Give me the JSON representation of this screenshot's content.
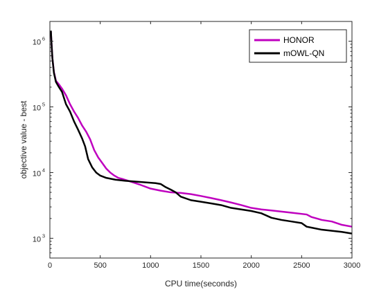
{
  "chart_data": {
    "type": "line",
    "title": "",
    "xlabel": "CPU time(seconds)",
    "ylabel": "objective value - best",
    "xlim": [
      0,
      3000
    ],
    "ylim": [
      500,
      2000000
    ],
    "yscale": "log",
    "x_ticks": [
      0,
      500,
      1000,
      1500,
      2000,
      2500,
      3000
    ],
    "x_tick_labels": [
      "0",
      "500",
      "1000",
      "1500",
      "2000",
      "2500",
      "3000"
    ],
    "y_ticks": [
      {
        "value": 1000,
        "base": "10",
        "exp": "3"
      },
      {
        "value": 10000,
        "base": "10",
        "exp": "4"
      },
      {
        "value": 100000,
        "base": "10",
        "exp": "5"
      },
      {
        "value": 1000000,
        "base": "10",
        "exp": "6"
      }
    ],
    "grid": false,
    "legend_position": "top-right",
    "series": [
      {
        "name": "HONOR",
        "color": "#bf00bf",
        "x": [
          10,
          15,
          25,
          40,
          60,
          90,
          120,
          160,
          200,
          240,
          280,
          320,
          360,
          400,
          440,
          480,
          520,
          560,
          600,
          640,
          680,
          720,
          800,
          900,
          1000,
          1100,
          1200,
          1300,
          1400,
          1500,
          1600,
          1700,
          1800,
          1900,
          2000,
          2100,
          2200,
          2300,
          2400,
          2500,
          2550,
          2600,
          2650,
          2700,
          2800,
          2900,
          3000
        ],
        "y": [
          1400000,
          1000000,
          550000,
          340000,
          250000,
          220000,
          190000,
          150000,
          110000,
          85000,
          68000,
          52000,
          42000,
          32000,
          22000,
          17000,
          14000,
          11500,
          10000,
          9000,
          8300,
          8000,
          7300,
          6500,
          5700,
          5300,
          5000,
          4900,
          4700,
          4400,
          4100,
          3800,
          3500,
          3200,
          2900,
          2750,
          2650,
          2550,
          2450,
          2350,
          2300,
          2100,
          2000,
          1900,
          1800,
          1600,
          1500
        ]
      },
      {
        "name": "mOWL-QN",
        "color": "#000000",
        "x": [
          10,
          15,
          25,
          40,
          60,
          90,
          120,
          160,
          200,
          240,
          280,
          320,
          350,
          380,
          420,
          460,
          500,
          560,
          650,
          750,
          850,
          950,
          1050,
          1100,
          1150,
          1200,
          1250,
          1300,
          1400,
          1500,
          1600,
          1700,
          1800,
          1900,
          2000,
          2100,
          2200,
          2300,
          2400,
          2500,
          2550,
          2600,
          2700,
          2800,
          2900,
          3000
        ],
        "y": [
          1450000,
          1000000,
          550000,
          330000,
          240000,
          200000,
          170000,
          110000,
          85000,
          60000,
          45000,
          33000,
          25000,
          16000,
          12000,
          10000,
          9000,
          8300,
          7800,
          7500,
          7300,
          7100,
          6900,
          6700,
          6000,
          5500,
          5000,
          4300,
          3800,
          3600,
          3400,
          3200,
          2900,
          2750,
          2600,
          2400,
          2050,
          1900,
          1800,
          1700,
          1500,
          1450,
          1350,
          1300,
          1250,
          1180
        ]
      }
    ]
  }
}
